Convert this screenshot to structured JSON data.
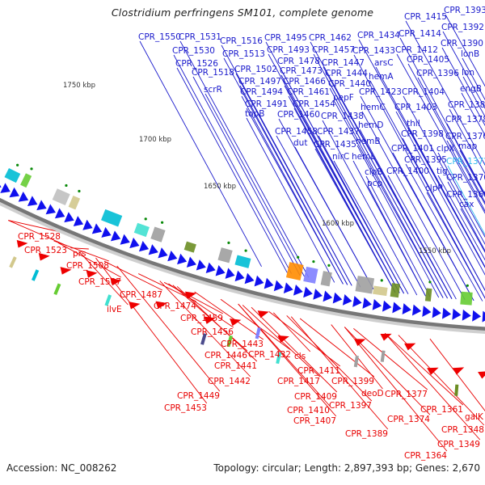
{
  "title": "Clostridium perfringens SM101, complete genome",
  "footer": {
    "accession": "Accession: NC_008262",
    "summary": "Topology: circular; Length: 2,897,393 bp; Genes: 2,670"
  },
  "colors": {
    "forward_label": "#1a1acc",
    "reverse_label": "#e80000",
    "highlight_label": "#33bbee",
    "forward_arrow": "#1010ee",
    "reverse_arrow": "#ee0000",
    "backbone": "#888888"
  },
  "scale_ticks": [
    {
      "label": "1750 kbp"
    },
    {
      "label": "1700 kbp"
    },
    {
      "label": "1650 kbp"
    },
    {
      "label": "1600 kbp"
    },
    {
      "label": "1550 kbp"
    }
  ],
  "forward_labels": [
    "CPR_1550",
    "CPR_1531",
    "CPR_1530",
    "CPR_1526",
    "CPR_1518",
    "scrR",
    "CPR_1516",
    "CPR_1513",
    "CPR_1502",
    "CPR_1497",
    "CPR_1494",
    "CPR_1491",
    "topB",
    "CPR_1495",
    "CPR_1493",
    "CPR_1478",
    "CPR_1473",
    "CPR_1466",
    "CPR_1461",
    "CPR_1454",
    "CPR_1460",
    "CPR_1458",
    "dut",
    "CPR_1462",
    "CPR_1457",
    "CPR_1447",
    "CPR_1444",
    "CPR_1440",
    "pepF",
    "CPR_1438",
    "CPR_1437",
    "CPR_1435",
    "nirC",
    "CPR_1434",
    "CPR_1433",
    "arsC",
    "hemA",
    "CPR_1423",
    "hemC",
    "hemD",
    "hemB",
    "hemL",
    "clpB",
    "pcp",
    "CPR_1415",
    "CPR_1414",
    "CPR_1412",
    "CPR_1405",
    "CPR_1404",
    "CPR_1403",
    "thiI",
    "CPR_1398",
    "CPR_1401",
    "CPR_1395",
    "CPR_1400",
    "CPR_1396",
    "clpX",
    "tig",
    "clpP",
    "CPR_1393",
    "CPR_1392",
    "CPR_1390",
    "lonB",
    "lon",
    "engB",
    "CPR_1380",
    "CPR_1378",
    "CPR_1376",
    "map",
    "CPR_1372",
    "CPR_1370",
    "CPR_1368",
    "cax"
  ],
  "reverse_labels": [
    "CPR_1528",
    "CPR_1523",
    "prs",
    "CPR_1508",
    "CPR_1507",
    "CPR_1487",
    "ilvE",
    "CPR_1474",
    "CPR_1459",
    "CPR_1456",
    "CPR_1443",
    "CPR_1446",
    "CPR_1441",
    "CPR_1442",
    "CPR_1449",
    "CPR_1453",
    "CPR_1432",
    "cls",
    "CPR_1411",
    "CPR_1417",
    "CPR_1409",
    "CPR_1410",
    "CPR_1407",
    "CPR_1399",
    "CPR_1397",
    "deoD",
    "CPR_1389",
    "CPR_1377",
    "CPR_1374",
    "CPR_1361",
    "CPR_1364",
    "galK",
    "CPR_1348",
    "CPR_1349"
  ]
}
